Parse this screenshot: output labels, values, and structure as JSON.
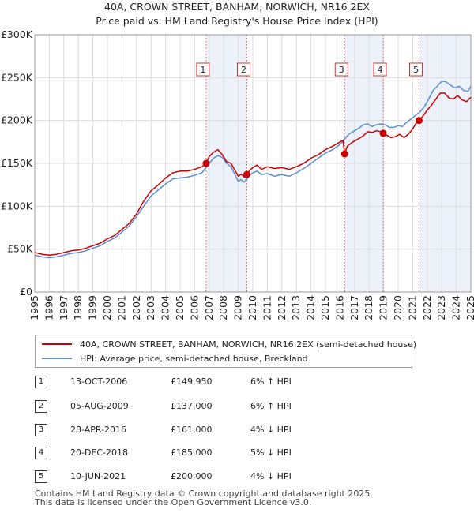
{
  "chart_data": {
    "type": "line",
    "title": "40A, CROWN STREET, BANHAM, NORWICH, NR16 2EX",
    "subtitle": "Price paid vs. HM Land Registry's House Price Index (HPI)",
    "xlim": [
      1995,
      2025
    ],
    "ylim": [
      0,
      300000
    ],
    "x_ticks": [
      "1995",
      "1996",
      "1997",
      "1998",
      "1999",
      "2000",
      "2001",
      "2002",
      "2003",
      "2004",
      "2005",
      "2006",
      "2007",
      "2008",
      "2009",
      "2010",
      "2011",
      "2012",
      "2013",
      "2014",
      "2015",
      "2016",
      "2017",
      "2018",
      "2019",
      "2020",
      "2021",
      "2022",
      "2023",
      "2024",
      "2025"
    ],
    "y_ticks": [
      {
        "value": 0,
        "label": "£0"
      },
      {
        "value": 50000,
        "label": "£50K"
      },
      {
        "value": 100000,
        "label": "£100K"
      },
      {
        "value": 150000,
        "label": "£150K"
      },
      {
        "value": 200000,
        "label": "£200K"
      },
      {
        "value": 250000,
        "label": "£250K"
      },
      {
        "value": 300000,
        "label": "£300K"
      }
    ],
    "grid": true,
    "shaded_periods": [
      [
        2006.79,
        2009.59
      ],
      [
        2016.32,
        2018.97
      ],
      [
        2021.44,
        2025.0
      ]
    ],
    "series": [
      {
        "name": "40A, CROWN STREET, BANHAM, NORWICH, NR16 2EX (semi-detached house)",
        "color": "#cc0000",
        "x": [
          1995.0,
          1995.5,
          1996.0,
          1996.5,
          1997.0,
          1997.5,
          1998.0,
          1998.5,
          1999.0,
          1999.5,
          2000.0,
          2000.5,
          2001.0,
          2001.5,
          2002.0,
          2002.5,
          2003.0,
          2003.5,
          2004.0,
          2004.5,
          2005.0,
          2005.5,
          2006.0,
          2006.5,
          2006.79,
          2007.0,
          2007.3,
          2007.6,
          2007.9,
          2008.2,
          2008.5,
          2008.8,
          2009.0,
          2009.2,
          2009.4,
          2009.59,
          2009.8,
          2010.0,
          2010.3,
          2010.6,
          2011.0,
          2011.5,
          2012.0,
          2012.5,
          2013.0,
          2013.5,
          2014.0,
          2014.5,
          2015.0,
          2015.5,
          2016.0,
          2016.2,
          2016.32,
          2016.5,
          2016.8,
          2017.0,
          2017.3,
          2017.6,
          2017.9,
          2018.2,
          2018.5,
          2018.8,
          2018.97,
          2019.2,
          2019.5,
          2019.8,
          2020.1,
          2020.4,
          2020.7,
          2021.0,
          2021.2,
          2021.44,
          2021.7,
          2022.0,
          2022.3,
          2022.6,
          2022.9,
          2023.2,
          2023.5,
          2023.8,
          2024.1,
          2024.4,
          2024.7,
          2025.0
        ],
        "values": [
          46000,
          44000,
          43000,
          44000,
          46000,
          48000,
          49000,
          51000,
          54000,
          57000,
          62000,
          66000,
          73000,
          80000,
          91000,
          106000,
          118000,
          125000,
          133000,
          139000,
          141000,
          141000,
          143000,
          146000,
          149950,
          158000,
          163000,
          166000,
          160000,
          152000,
          150000,
          141000,
          135000,
          137500,
          134000,
          137000,
          142000,
          145000,
          148000,
          143000,
          146000,
          144000,
          145000,
          143000,
          146000,
          150000,
          156000,
          160000,
          166000,
          170000,
          175000,
          177000,
          161000,
          170000,
          174000,
          176000,
          179000,
          182000,
          187000,
          186000,
          188000,
          187000,
          185000,
          183000,
          180000,
          181000,
          184000,
          180000,
          184000,
          190000,
          196000,
          200000,
          205000,
          212000,
          218000,
          225000,
          232000,
          232000,
          226000,
          225000,
          229000,
          224000,
          222000,
          227000
        ]
      },
      {
        "name": "HPI: Average price, semi-detached house, Breckland",
        "color": "#5b8fcf",
        "x": [
          1995.0,
          1995.5,
          1996.0,
          1996.5,
          1997.0,
          1997.5,
          1998.0,
          1998.5,
          1999.0,
          1999.5,
          2000.0,
          2000.5,
          2001.0,
          2001.5,
          2002.0,
          2002.5,
          2003.0,
          2003.5,
          2004.0,
          2004.5,
          2005.0,
          2005.5,
          2006.0,
          2006.5,
          2007.0,
          2007.3,
          2007.6,
          2007.9,
          2008.2,
          2008.5,
          2008.8,
          2009.0,
          2009.2,
          2009.4,
          2009.6,
          2009.8,
          2010.0,
          2010.3,
          2010.6,
          2011.0,
          2011.5,
          2012.0,
          2012.5,
          2013.0,
          2013.5,
          2014.0,
          2014.5,
          2015.0,
          2015.5,
          2016.0,
          2016.3,
          2016.6,
          2017.0,
          2017.3,
          2017.6,
          2017.9,
          2018.2,
          2018.5,
          2018.8,
          2019.1,
          2019.4,
          2019.7,
          2020.0,
          2020.3,
          2020.6,
          2020.9,
          2021.2,
          2021.5,
          2021.8,
          2022.1,
          2022.4,
          2022.7,
          2023.0,
          2023.3,
          2023.6,
          2023.9,
          2024.2,
          2024.5,
          2024.8,
          2025.0
        ],
        "values": [
          43000,
          41000,
          40000,
          41000,
          43000,
          45000,
          46000,
          48000,
          51000,
          54000,
          59000,
          63000,
          70000,
          77000,
          88000,
          100000,
          112000,
          119000,
          126000,
          132000,
          133000,
          134000,
          136000,
          139000,
          150000,
          156000,
          159000,
          157000,
          150000,
          146000,
          136000,
          129000,
          131000,
          128000,
          132000,
          136000,
          139000,
          141000,
          137000,
          138000,
          135000,
          137000,
          135000,
          139000,
          144000,
          150000,
          156000,
          162000,
          166000,
          172000,
          178000,
          184000,
          188000,
          191000,
          195000,
          196000,
          193000,
          195000,
          196000,
          195000,
          192000,
          192000,
          194000,
          193000,
          198000,
          202000,
          206000,
          210000,
          216000,
          225000,
          235000,
          240000,
          246000,
          245000,
          241000,
          238000,
          240000,
          235000,
          234000,
          240000
        ]
      }
    ],
    "sales": [
      {
        "label": "1",
        "x": 2006.79,
        "value": 149950
      },
      {
        "label": "2",
        "x": 2009.59,
        "value": 137000
      },
      {
        "label": "3",
        "x": 2016.32,
        "value": 161000
      },
      {
        "label": "4",
        "x": 2018.97,
        "value": 185000
      },
      {
        "label": "5",
        "x": 2021.44,
        "value": 200000
      }
    ]
  },
  "legend": {
    "property_label": "40A, CROWN STREET, BANHAM, NORWICH, NR16 2EX (semi-detached house)",
    "hpi_label": "HPI: Average price, semi-detached house, Breckland"
  },
  "sales_table": [
    {
      "num": "1",
      "date": "13-OCT-2006",
      "price": "£149,950",
      "hpi": "6% ↑ HPI"
    },
    {
      "num": "2",
      "date": "05-AUG-2009",
      "price": "£137,000",
      "hpi": "6% ↑ HPI"
    },
    {
      "num": "3",
      "date": "28-APR-2016",
      "price": "£161,000",
      "hpi": "4% ↓ HPI"
    },
    {
      "num": "4",
      "date": "20-DEC-2018",
      "price": "£185,000",
      "hpi": "5% ↓ HPI"
    },
    {
      "num": "5",
      "date": "10-JUN-2021",
      "price": "£200,000",
      "hpi": "4% ↓ HPI"
    }
  ],
  "footer": {
    "line1": "Contains HM Land Registry data © Crown copyright and database right 2025.",
    "line2": "This data is licensed under the Open Government Licence v3.0."
  }
}
